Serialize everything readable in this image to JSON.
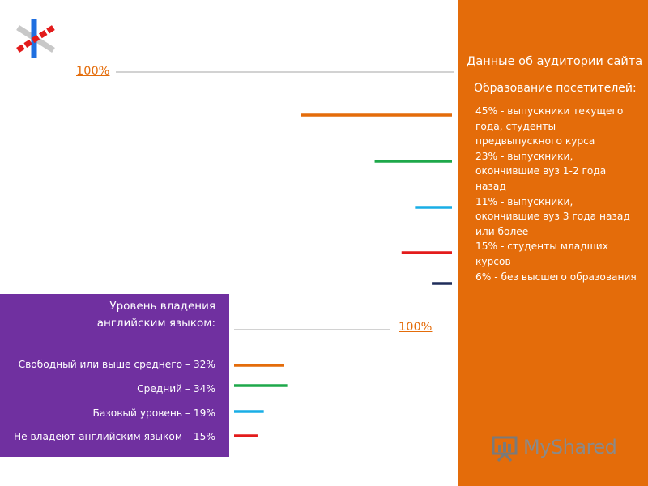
{
  "panel": {
    "title": "Данные об аудитории сайта",
    "subtitle": "Образование посетителей:",
    "education_items": [
      "45% - выпускники текущего года, студенты предвыпускного курса",
      "23% - выпускники, окончившие вуз 1-2 года назад",
      "11% - выпускники, окончившие вуз 3 года назад или более",
      "15% - студенты младших курсов",
      "6% - без высшего образования"
    ]
  },
  "english": {
    "title": "Уровень владения английским языком:",
    "items": [
      "Свободный или выше среднего – 32%",
      "Средний – 34%",
      "Базовый уровень – 19%",
      "Не владеют английским языком – 15%"
    ]
  },
  "scale_labels": {
    "top": "100%",
    "bottom": "100%"
  },
  "watermark": {
    "text": "MyShared"
  },
  "colors": {
    "orange_panel": "#e46c0a",
    "purple_panel": "#7030a0",
    "bar_orange": "#e46c0a",
    "bar_green": "#1ea84a",
    "bar_blue": "#19aee6",
    "bar_red": "#e31b1b",
    "bar_navy": "#1f2d5a",
    "scale_line": "#a6a6a6"
  },
  "chart_data": [
    {
      "type": "bar",
      "orientation": "horizontal",
      "direction": "right-to-left",
      "scale_max": 100,
      "categories": [
        "выпускники текущего года, студенты предвыпускного курса",
        "выпускники, окончившие вуз 1-2 года назад",
        "выпускники, окончившие вуз 3 года назад или более",
        "студенты младших курсов",
        "без высшего образования"
      ],
      "values": [
        45,
        23,
        11,
        15,
        6
      ],
      "colors": [
        "#e46c0a",
        "#1ea84a",
        "#19aee6",
        "#e31b1b",
        "#1f2d5a"
      ]
    },
    {
      "type": "bar",
      "orientation": "horizontal",
      "direction": "left-to-right",
      "scale_max": 100,
      "categories": [
        "Свободный или выше среднего",
        "Средний",
        "Базовый уровень",
        "Не владеют английским языком"
      ],
      "values": [
        32,
        34,
        19,
        15
      ],
      "colors": [
        "#e46c0a",
        "#1ea84a",
        "#19aee6",
        "#e31b1b"
      ]
    }
  ]
}
